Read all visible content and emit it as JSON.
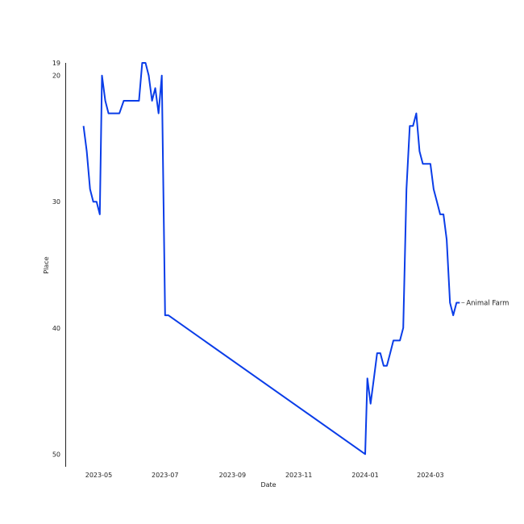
{
  "chart_data": {
    "type": "line",
    "title": "",
    "xlabel": "Date",
    "ylabel": "Place",
    "x_type": "date",
    "xlim": [
      "2023-04-01",
      "2024-04-19"
    ],
    "ylim": [
      51,
      19
    ],
    "y_inverted": true,
    "grid": false,
    "legend": "none",
    "x_ticks": [
      "2023-05",
      "2023-07",
      "2023-09",
      "2023-11",
      "2024-01",
      "2024-03"
    ],
    "y_ticks": [
      19,
      20,
      30,
      40,
      50
    ],
    "color": "#0a3de8",
    "series": [
      {
        "name": "Animal Farm",
        "x": [
          "2023-04-17",
          "2023-04-20",
          "2023-04-23",
          "2023-04-26",
          "2023-04-29",
          "2023-05-02",
          "2023-05-04",
          "2023-05-07",
          "2023-05-10",
          "2023-05-13",
          "2023-05-17",
          "2023-05-20",
          "2023-05-24",
          "2023-05-27",
          "2023-05-30",
          "2023-06-03",
          "2023-06-07",
          "2023-06-10",
          "2023-06-13",
          "2023-06-16",
          "2023-06-19",
          "2023-06-22",
          "2023-06-25",
          "2023-06-28",
          "2023-07-01",
          "2023-07-04",
          "2024-01-01",
          "2024-01-03",
          "2024-01-06",
          "2024-01-09",
          "2024-01-12",
          "2024-01-15",
          "2024-01-18",
          "2024-01-21",
          "2024-01-24",
          "2024-01-27",
          "2024-01-30",
          "2024-02-02",
          "2024-02-05",
          "2024-02-08",
          "2024-02-11",
          "2024-02-14",
          "2024-02-17",
          "2024-02-20",
          "2024-02-23",
          "2024-02-26",
          "2024-03-01",
          "2024-03-04",
          "2024-03-07",
          "2024-03-10",
          "2024-03-13",
          "2024-03-16",
          "2024-03-19",
          "2024-03-22",
          "2024-03-25",
          "2024-03-28"
        ],
        "y": [
          24,
          26,
          29,
          30,
          30,
          31,
          20,
          22,
          23,
          23,
          23,
          23,
          22,
          22,
          22,
          22,
          22,
          19,
          19,
          20,
          22,
          21,
          23,
          20,
          39,
          39,
          50,
          44,
          46,
          44,
          42,
          42,
          43,
          43,
          42,
          41,
          41,
          41,
          40,
          29,
          24,
          24,
          23,
          26,
          27,
          27,
          27,
          29,
          30,
          31,
          31,
          33,
          38,
          39,
          38,
          38
        ]
      }
    ]
  }
}
